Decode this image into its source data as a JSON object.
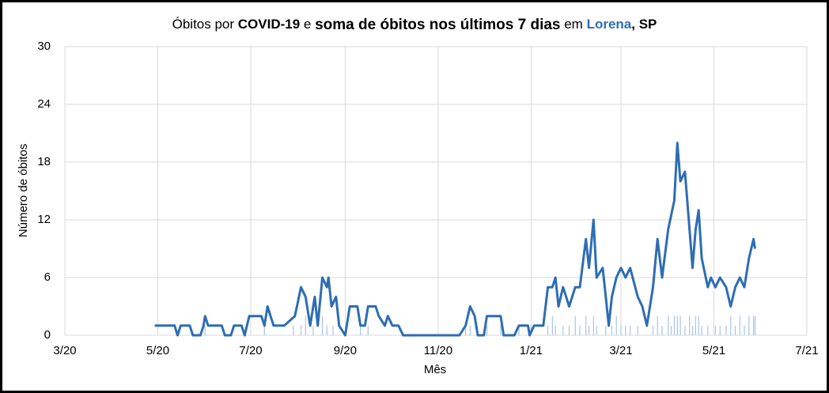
{
  "chart_data": {
    "type": "line",
    "title_parts": [
      {
        "text": "Óbitos por ",
        "style": "normal"
      },
      {
        "text": "COVID-19",
        "style": "bold"
      },
      {
        "text": " e ",
        "style": "normal"
      },
      {
        "text": "soma de óbitos nos últimos 7 dias",
        "style": "bold-large"
      },
      {
        "text": " em ",
        "style": "normal"
      },
      {
        "text": "Lorena",
        "style": "blue"
      },
      {
        "text": ", SP",
        "style": "bold"
      }
    ],
    "xlabel": "Mês",
    "ylabel": "Número de óbitos",
    "xlim": [
      0,
      487
    ],
    "ylim": [
      0,
      30
    ],
    "xticks": [
      {
        "value": 0,
        "label": "3/20"
      },
      {
        "value": 61,
        "label": "5/20"
      },
      {
        "value": 122,
        "label": "7/20"
      },
      {
        "value": 184,
        "label": "9/20"
      },
      {
        "value": 245,
        "label": "11/20"
      },
      {
        "value": 306,
        "label": "1/21"
      },
      {
        "value": 365,
        "label": "3/21"
      },
      {
        "value": 426,
        "label": "5/21"
      },
      {
        "value": 487,
        "label": "7/21"
      }
    ],
    "yticks": [
      0,
      6,
      12,
      18,
      24,
      30
    ],
    "grid": true,
    "series": [
      {
        "type": "bar",
        "color": "#a9c4e8",
        "x": [
          92,
          131,
          150,
          155,
          158,
          163,
          169,
          172,
          176,
          194,
          199,
          263,
          266,
          277,
          286,
          298,
          306,
          317,
          320,
          322,
          327,
          331,
          335,
          338,
          342,
          344,
          347,
          349,
          355,
          359,
          362,
          365,
          368,
          371,
          376,
          386,
          389,
          392,
          396,
          398,
          400,
          402,
          404,
          407,
          410,
          412,
          414,
          416,
          418,
          422,
          427,
          430,
          434,
          437,
          440,
          443,
          446,
          449,
          452,
          453
        ],
        "values": [
          1,
          1,
          1,
          1,
          2,
          1,
          2,
          1,
          1,
          1,
          1,
          1,
          1,
          1,
          1,
          1,
          1,
          1,
          2,
          1,
          1,
          1,
          2,
          1,
          2,
          1,
          2,
          1,
          1,
          1,
          2,
          1,
          1,
          1,
          1,
          1,
          2,
          1,
          2,
          1,
          2,
          2,
          2,
          1,
          2,
          1,
          2,
          2,
          1,
          1,
          1,
          1,
          1,
          2,
          1,
          2,
          1,
          2,
          2,
          2
        ]
      },
      {
        "type": "line",
        "color": "#2e6db4",
        "x": [
          59,
          72,
          74,
          76,
          82,
          84,
          89,
          91,
          92,
          94,
          103,
          105,
          109,
          111,
          116,
          118,
          121,
          129,
          131,
          133,
          135,
          137,
          144,
          151,
          155,
          158,
          161,
          164,
          166,
          169,
          172,
          173,
          175,
          178,
          180,
          184,
          187,
          192,
          194,
          197,
          199,
          204,
          206,
          210,
          212,
          215,
          219,
          222,
          259,
          263,
          266,
          269,
          271,
          275,
          277,
          286,
          288,
          295,
          298,
          304,
          305,
          308,
          314,
          317,
          320,
          322,
          324,
          327,
          329,
          331,
          335,
          338,
          342,
          344,
          347,
          349,
          353,
          355,
          357,
          359,
          362,
          365,
          368,
          371,
          376,
          379,
          382,
          386,
          389,
          392,
          396,
          400,
          402,
          404,
          407,
          410,
          412,
          414,
          416,
          418,
          422,
          424,
          427,
          430,
          434,
          437,
          440,
          443,
          446,
          449,
          452,
          453
        ],
        "values": [
          1,
          1,
          0,
          1,
          1,
          0,
          0,
          1,
          2,
          1,
          1,
          0,
          0,
          1,
          1,
          0,
          2,
          2,
          1,
          3,
          2,
          1,
          1,
          2,
          5,
          4,
          1,
          4,
          1,
          6,
          5,
          6,
          3,
          4,
          1,
          0,
          3,
          3,
          1,
          1,
          3,
          3,
          2,
          1,
          2,
          1,
          1,
          0,
          0,
          1,
          3,
          2,
          0,
          0,
          2,
          2,
          0,
          0,
          1,
          1,
          0,
          1,
          1,
          5,
          5,
          6,
          3,
          5,
          4,
          3,
          5,
          5,
          10,
          7,
          12,
          6,
          7,
          4,
          1,
          4,
          6,
          7,
          6,
          7,
          4,
          3,
          1,
          5,
          10,
          6,
          11,
          14,
          20,
          16,
          17,
          11,
          7,
          11,
          13,
          8,
          5,
          6,
          5,
          6,
          5,
          3,
          5,
          6,
          5,
          8,
          10,
          9
        ]
      }
    ]
  }
}
